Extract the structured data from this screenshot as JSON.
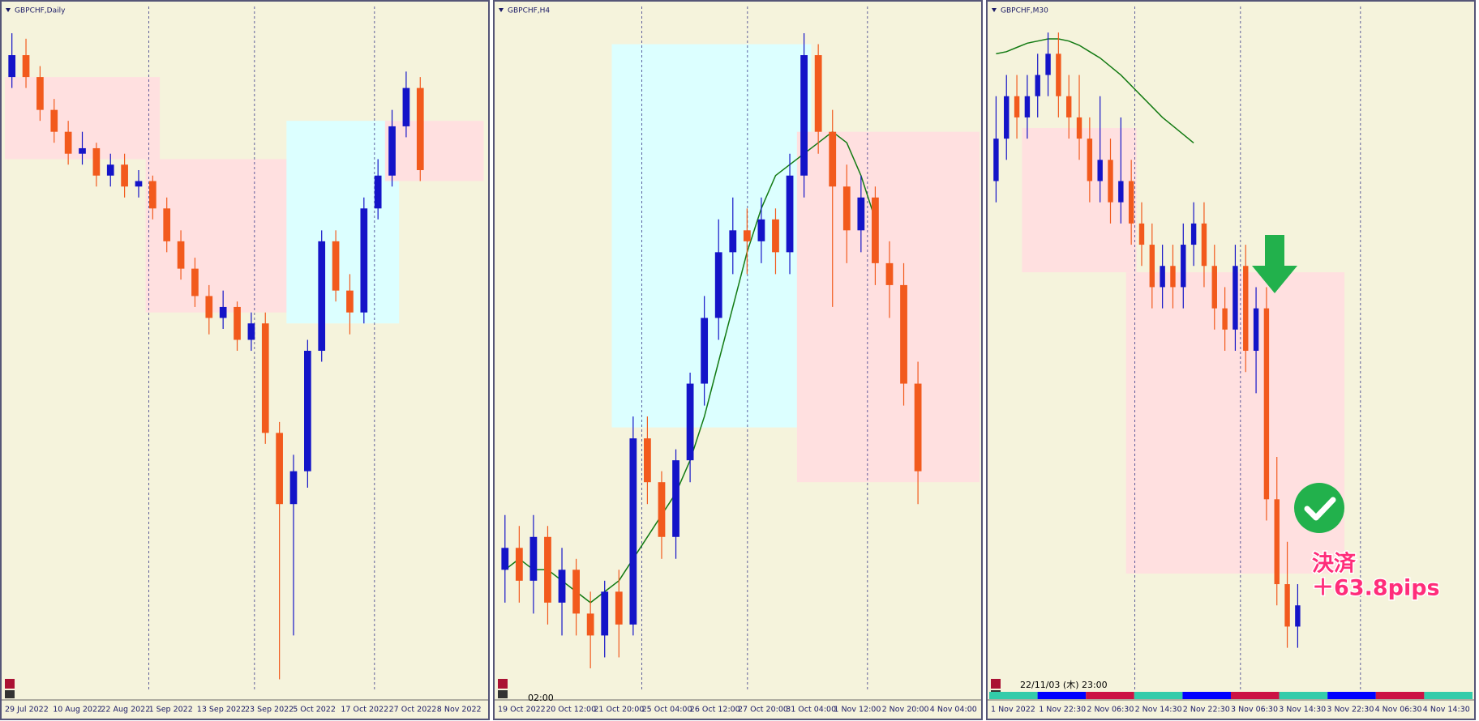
{
  "chart_data": [
    {
      "type": "candlestick",
      "title": "GBPCHF,Daily",
      "ylim": [
        1.048,
        1.172
      ],
      "xticks": [
        "29 Jul 2022",
        "10 Aug 2022",
        "22 Aug 2022",
        "1 Sep 2022",
        "13 Sep 2022",
        "23 Sep 2022",
        "5 Oct 2022",
        "17 Oct 2022",
        "27 Oct 2022",
        "8 Nov 2022"
      ],
      "up_color": "#1414c8",
      "down_color": "#f25a1d",
      "open": [
        1.16,
        1.164,
        1.16,
        1.154,
        1.15,
        1.146,
        1.147,
        1.142,
        1.144,
        1.14,
        1.141,
        1.136,
        1.13,
        1.125,
        1.12,
        1.116,
        1.118,
        1.112,
        1.115,
        1.095,
        1.082,
        1.088,
        1.11,
        1.13,
        1.121,
        1.117,
        1.136,
        1.142,
        1.151,
        1.158
      ],
      "high": [
        1.168,
        1.167,
        1.162,
        1.156,
        1.152,
        1.15,
        1.148,
        1.146,
        1.146,
        1.143,
        1.142,
        1.138,
        1.132,
        1.127,
        1.122,
        1.121,
        1.119,
        1.117,
        1.117,
        1.097,
        1.091,
        1.112,
        1.132,
        1.132,
        1.124,
        1.138,
        1.145,
        1.154,
        1.161,
        1.16
      ],
      "low": [
        1.158,
        1.158,
        1.152,
        1.148,
        1.144,
        1.144,
        1.14,
        1.14,
        1.138,
        1.138,
        1.134,
        1.128,
        1.123,
        1.118,
        1.113,
        1.114,
        1.11,
        1.11,
        1.093,
        1.05,
        1.058,
        1.085,
        1.108,
        1.119,
        1.113,
        1.115,
        1.134,
        1.14,
        1.149,
        1.141
      ],
      "close": [
        1.164,
        1.16,
        1.154,
        1.15,
        1.146,
        1.147,
        1.142,
        1.144,
        1.14,
        1.141,
        1.136,
        1.13,
        1.125,
        1.12,
        1.116,
        1.118,
        1.112,
        1.115,
        1.095,
        1.082,
        1.088,
        1.11,
        1.13,
        1.121,
        1.117,
        1.136,
        1.142,
        1.151,
        1.158,
        1.143
      ],
      "zones": [
        {
          "color": "#ffe0e0",
          "from": 0,
          "to": 10,
          "range": [
            1.145,
            1.16
          ]
        },
        {
          "color": "#ffe0e0",
          "from": 10,
          "to": 20,
          "range": [
            1.117,
            1.145
          ]
        },
        {
          "color": "#dcffff",
          "from": 20,
          "to": 27,
          "range": [
            1.115,
            1.152
          ]
        },
        {
          "color": "#ffe0e0",
          "from": 27,
          "to": 33,
          "range": [
            1.141,
            1.152
          ]
        }
      ]
    },
    {
      "type": "candlestick",
      "title": "GBPCHF,H4",
      "ylim": [
        1.099,
        1.161
      ],
      "xticks": [
        "19 Oct 2022",
        "20 Oct 12:00",
        "21 Oct 20:00",
        "25 Oct 04:00",
        "26 Oct 12:00",
        "27 Oct 20:00",
        "31 Oct 04:00",
        "1 Nov 12:00",
        "2 Nov 20:00",
        "4 Nov 04:00"
      ],
      "up_color": "#1414c8",
      "down_color": "#f25a1d",
      "ma_color": "#127a12",
      "open": [
        1.11,
        1.112,
        1.109,
        1.113,
        1.107,
        1.11,
        1.106,
        1.104,
        1.108,
        1.105,
        1.122,
        1.118,
        1.113,
        1.12,
        1.127,
        1.133,
        1.139,
        1.141,
        1.14,
        1.142,
        1.139,
        1.146,
        1.157,
        1.15,
        1.145,
        1.141,
        1.144,
        1.138,
        1.136,
        1.127
      ],
      "high": [
        1.115,
        1.114,
        1.115,
        1.114,
        1.112,
        1.111,
        1.108,
        1.109,
        1.11,
        1.124,
        1.124,
        1.119,
        1.121,
        1.128,
        1.135,
        1.142,
        1.144,
        1.143,
        1.144,
        1.143,
        1.148,
        1.159,
        1.158,
        1.152,
        1.147,
        1.146,
        1.145,
        1.14,
        1.138,
        1.129
      ],
      "low": [
        1.107,
        1.107,
        1.106,
        1.105,
        1.104,
        1.104,
        1.101,
        1.102,
        1.102,
        1.104,
        1.116,
        1.111,
        1.111,
        1.118,
        1.125,
        1.131,
        1.137,
        1.137,
        1.138,
        1.137,
        1.137,
        1.144,
        1.148,
        1.134,
        1.138,
        1.139,
        1.136,
        1.133,
        1.125,
        1.116
      ],
      "close": [
        1.112,
        1.109,
        1.113,
        1.107,
        1.11,
        1.106,
        1.104,
        1.108,
        1.105,
        1.122,
        1.118,
        1.113,
        1.12,
        1.127,
        1.133,
        1.139,
        1.141,
        1.14,
        1.142,
        1.139,
        1.146,
        1.157,
        1.15,
        1.145,
        1.141,
        1.144,
        1.138,
        1.136,
        1.127,
        1.119
      ],
      "ma": [
        1.11,
        1.111,
        1.11,
        1.11,
        1.109,
        1.108,
        1.107,
        1.108,
        1.109,
        1.111,
        1.113,
        1.115,
        1.117,
        1.12,
        1.124,
        1.129,
        1.134,
        1.139,
        1.143,
        1.146,
        1.147,
        1.148,
        1.149,
        1.15,
        1.149,
        1.146,
        1.142,
        null,
        null,
        null
      ],
      "zones": [
        {
          "color": "#dcffff",
          "from": 8,
          "to": 21,
          "range": [
            1.123,
            1.158
          ]
        },
        {
          "color": "#ffe0e0",
          "from": 21,
          "to": 33,
          "range": [
            1.118,
            1.15
          ]
        }
      ],
      "time_label": "02:00"
    },
    {
      "type": "candlestick",
      "title": "GBPCHF,M30",
      "ylim": [
        1.119,
        1.151
      ],
      "xticks": [
        "1 Nov 2022",
        "1 Nov 22:30",
        "2 Nov 06:30",
        "2 Nov 14:30",
        "2 Nov 22:30",
        "3 Nov 06:30",
        "3 Nov 14:30",
        "3 Nov 22:30",
        "4 Nov 06:30",
        "4 Nov 14:30"
      ],
      "up_color": "#1414c8",
      "down_color": "#f25a1d",
      "ma_color": "#127a12",
      "open": [
        1.143,
        1.145,
        1.147,
        1.146,
        1.147,
        1.148,
        1.149,
        1.147,
        1.146,
        1.145,
        1.143,
        1.144,
        1.142,
        1.143,
        1.141,
        1.14,
        1.138,
        1.139,
        1.138,
        1.14,
        1.141,
        1.139,
        1.137,
        1.136,
        1.139,
        1.135,
        1.137,
        1.128,
        1.124,
        1.122
      ],
      "high": [
        1.147,
        1.148,
        1.148,
        1.148,
        1.149,
        1.15,
        1.15,
        1.148,
        1.148,
        1.146,
        1.147,
        1.145,
        1.146,
        1.144,
        1.142,
        1.141,
        1.14,
        1.14,
        1.141,
        1.142,
        1.142,
        1.14,
        1.138,
        1.14,
        1.14,
        1.138,
        1.138,
        1.13,
        1.126,
        1.124
      ],
      "low": [
        1.142,
        1.144,
        1.145,
        1.145,
        1.146,
        1.147,
        1.146,
        1.145,
        1.144,
        1.142,
        1.142,
        1.141,
        1.141,
        1.14,
        1.139,
        1.137,
        1.137,
        1.137,
        1.137,
        1.139,
        1.138,
        1.136,
        1.135,
        1.135,
        1.134,
        1.133,
        1.127,
        1.123,
        1.121,
        1.121
      ],
      "close": [
        1.145,
        1.147,
        1.146,
        1.147,
        1.148,
        1.149,
        1.147,
        1.146,
        1.145,
        1.143,
        1.144,
        1.142,
        1.143,
        1.141,
        1.14,
        1.138,
        1.139,
        1.138,
        1.14,
        1.141,
        1.139,
        1.137,
        1.136,
        1.139,
        1.135,
        1.137,
        1.128,
        1.124,
        1.122,
        1.123
      ],
      "ma": [
        1.149,
        1.1491,
        1.1493,
        1.1495,
        1.1496,
        1.1497,
        1.1497,
        1.1496,
        1.1494,
        1.1491,
        1.1488,
        1.1484,
        1.148,
        1.1475,
        1.147,
        1.1465,
        1.146,
        1.1456,
        1.1452,
        1.1448,
        null,
        null,
        null,
        null,
        null,
        null,
        null,
        null,
        null,
        null
      ],
      "zones": [
        {
          "color": "#ffe0e0",
          "from": 3,
          "to": 13,
          "range": [
            1.1387,
            1.1455
          ]
        },
        {
          "color": "#ffe0e0",
          "from": 13,
          "to": 33,
          "range": [
            1.1245,
            1.1387
          ]
        }
      ],
      "time_label": "22/11/03 (木) 23:00",
      "annotation": [
        "決済",
        "＋63.8pips"
      ]
    }
  ]
}
